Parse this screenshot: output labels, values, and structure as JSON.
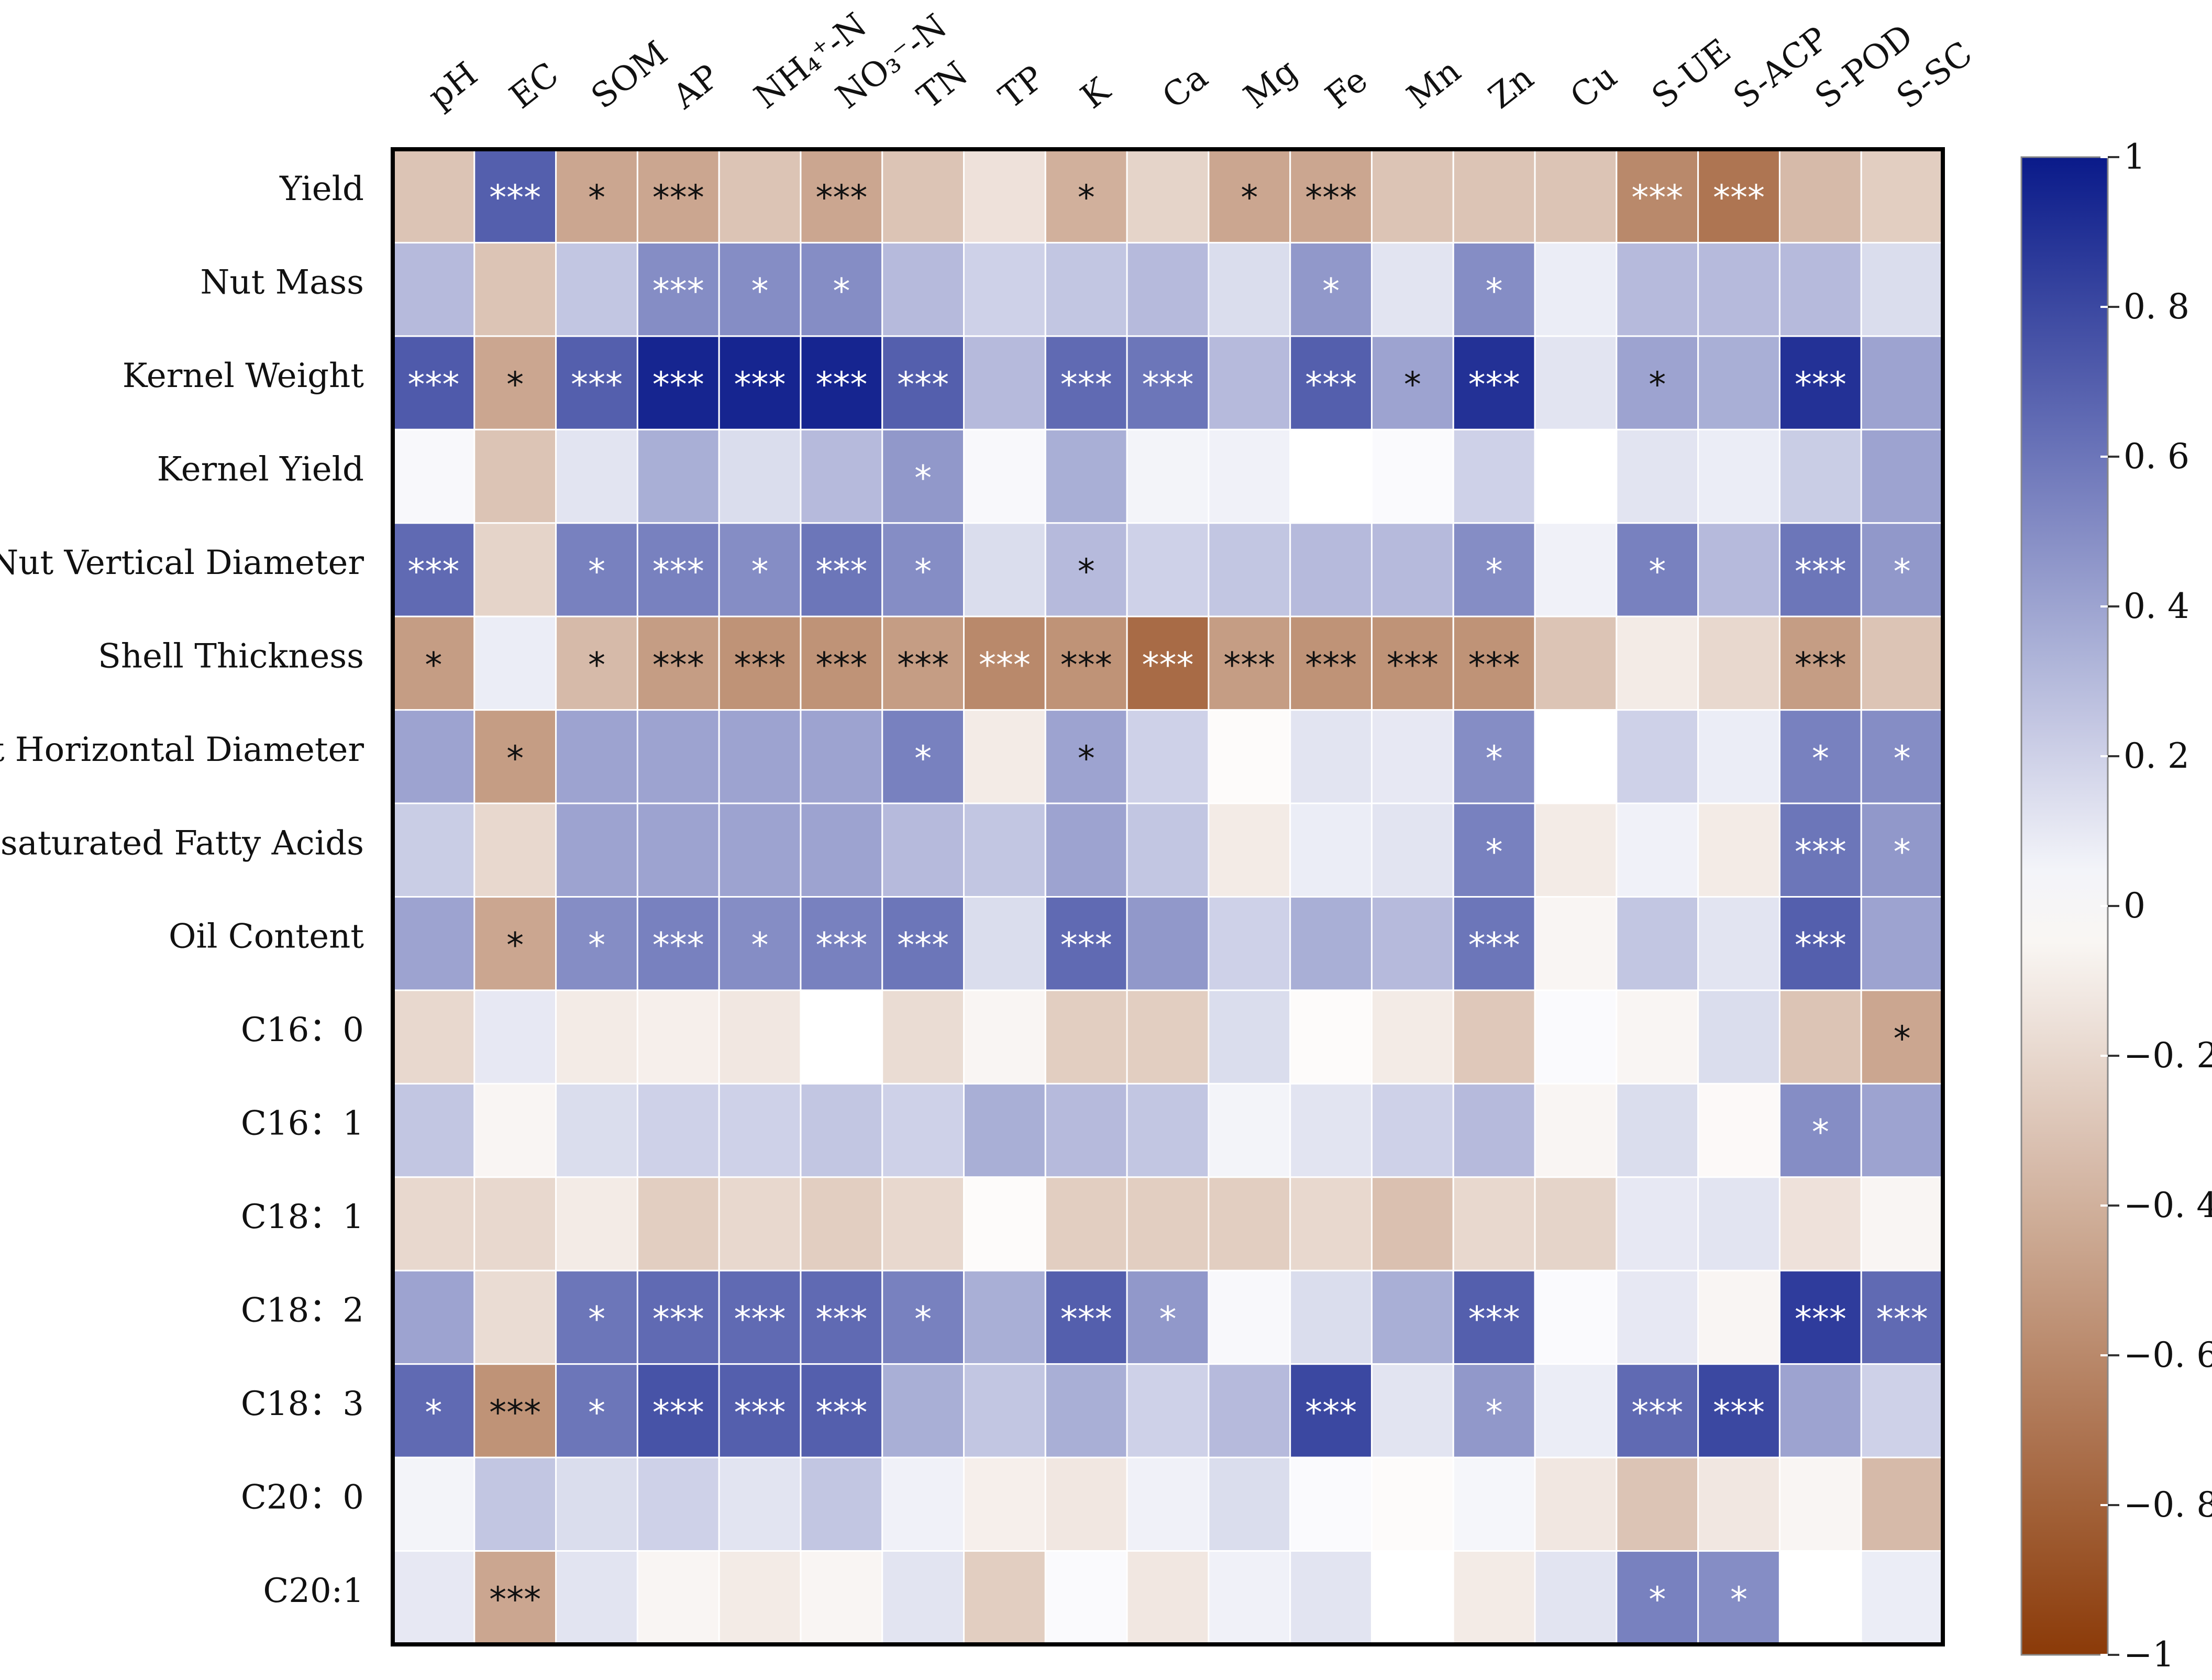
{
  "chart_data": {
    "type": "heatmap",
    "title": "",
    "xlabel": "",
    "ylabel": "",
    "x_labels": [
      "pH",
      "EC",
      "SOM",
      "AP",
      "NH₄⁺-N",
      "NO₃⁻-N",
      "TN",
      "TP",
      "K",
      "Ca",
      "Mg",
      "Fe",
      "Mn",
      "Zn",
      "Cu",
      "S-UE",
      "S-ACP",
      "S-POD",
      "S-SC"
    ],
    "y_labels": [
      "Yield",
      "Nut Mass",
      "Kernel Weight",
      "Kernel Yield",
      "Nut Vertical Diameter",
      "Shell Thickness",
      "Nut Horizontal Diameter",
      "Unsaturated Fatty Acids",
      "Oil Content",
      "C16：0",
      "C16：1",
      "C18：1",
      "C18：2",
      "C18：3",
      "C20：0",
      "C20:1"
    ],
    "values": [
      [
        -0.3,
        0.7,
        -0.45,
        -0.45,
        -0.3,
        -0.45,
        -0.3,
        -0.15,
        -0.4,
        -0.22,
        -0.45,
        -0.45,
        -0.3,
        -0.3,
        -0.3,
        -0.6,
        -0.7,
        -0.35,
        -0.25
      ],
      [
        0.3,
        -0.3,
        0.25,
        0.5,
        0.5,
        0.5,
        0.3,
        0.2,
        0.25,
        0.3,
        0.15,
        0.45,
        0.12,
        0.5,
        0.08,
        0.3,
        0.3,
        0.3,
        0.15
      ],
      [
        0.72,
        -0.45,
        0.7,
        0.95,
        0.95,
        0.95,
        0.7,
        0.3,
        0.65,
        0.6,
        0.3,
        0.7,
        0.4,
        0.9,
        0.12,
        0.4,
        0.35,
        0.9,
        0.4
      ],
      [
        0.03,
        -0.3,
        0.12,
        0.35,
        0.15,
        0.3,
        0.45,
        0.03,
        0.35,
        0.05,
        0.06,
        0.0,
        0.02,
        0.2,
        0.0,
        0.12,
        0.08,
        0.22,
        0.4
      ],
      [
        0.65,
        -0.22,
        0.55,
        0.55,
        0.5,
        0.6,
        0.5,
        0.15,
        0.3,
        0.2,
        0.25,
        0.3,
        0.3,
        0.5,
        0.06,
        0.55,
        0.3,
        0.6,
        0.45
      ],
      [
        -0.5,
        0.08,
        -0.35,
        -0.5,
        -0.55,
        -0.55,
        -0.5,
        -0.6,
        -0.55,
        -0.75,
        -0.5,
        -0.55,
        -0.55,
        -0.55,
        -0.3,
        -0.1,
        -0.2,
        -0.5,
        -0.3
      ],
      [
        0.4,
        -0.5,
        0.4,
        0.4,
        0.4,
        0.4,
        0.55,
        -0.1,
        0.4,
        0.2,
        -0.02,
        0.12,
        0.1,
        0.5,
        0.0,
        0.2,
        0.08,
        0.55,
        0.5
      ],
      [
        0.22,
        -0.2,
        0.4,
        0.4,
        0.4,
        0.4,
        0.3,
        0.25,
        0.4,
        0.25,
        -0.1,
        0.08,
        0.12,
        0.55,
        -0.1,
        0.06,
        -0.1,
        0.6,
        0.45
      ],
      [
        0.4,
        -0.45,
        0.5,
        0.55,
        0.5,
        0.55,
        0.6,
        0.15,
        0.65,
        0.45,
        0.2,
        0.35,
        0.3,
        0.6,
        -0.05,
        0.25,
        0.12,
        0.7,
        0.4
      ],
      [
        -0.2,
        0.1,
        -0.1,
        -0.08,
        -0.12,
        0.0,
        -0.18,
        -0.05,
        -0.25,
        -0.25,
        0.15,
        -0.02,
        -0.1,
        -0.28,
        0.02,
        -0.05,
        0.15,
        -0.3,
        -0.45
      ],
      [
        0.25,
        -0.05,
        0.15,
        0.2,
        0.2,
        0.25,
        0.2,
        0.35,
        0.3,
        0.25,
        0.05,
        0.12,
        0.2,
        0.3,
        -0.05,
        0.15,
        -0.03,
        0.5,
        0.4
      ],
      [
        -0.2,
        -0.2,
        -0.1,
        -0.25,
        -0.2,
        -0.25,
        -0.2,
        -0.02,
        -0.25,
        -0.25,
        -0.25,
        -0.2,
        -0.32,
        -0.2,
        -0.22,
        0.1,
        0.12,
        -0.15,
        -0.05
      ],
      [
        0.4,
        -0.18,
        0.6,
        0.65,
        0.65,
        0.65,
        0.55,
        0.35,
        0.7,
        0.45,
        0.03,
        0.15,
        0.35,
        0.7,
        0.02,
        0.1,
        -0.05,
        0.85,
        0.65
      ],
      [
        0.65,
        -0.55,
        0.6,
        0.75,
        0.7,
        0.7,
        0.35,
        0.25,
        0.35,
        0.2,
        0.3,
        0.8,
        0.12,
        0.45,
        0.08,
        0.65,
        0.8,
        0.4,
        0.2
      ],
      [
        0.05,
        0.25,
        0.15,
        0.2,
        0.12,
        0.25,
        0.06,
        -0.08,
        -0.12,
        0.06,
        0.15,
        0.02,
        -0.02,
        0.04,
        -0.12,
        -0.3,
        -0.12,
        -0.05,
        -0.35
      ],
      [
        0.1,
        -0.45,
        0.12,
        -0.05,
        -0.1,
        -0.05,
        0.12,
        -0.25,
        0.02,
        -0.12,
        0.06,
        0.12,
        0.0,
        -0.1,
        0.12,
        0.55,
        0.5,
        0.0,
        0.08
      ]
    ],
    "significance": [
      [
        "",
        "***",
        "*",
        "***",
        "",
        "***",
        "",
        "",
        "*",
        "",
        "*",
        "***",
        "",
        "",
        "",
        "***",
        "***",
        "",
        ""
      ],
      [
        "",
        "",
        "",
        "***",
        "*",
        "*",
        "",
        "",
        "",
        "",
        "",
        "*",
        "",
        "*",
        "",
        "",
        "",
        "",
        ""
      ],
      [
        "***",
        "*",
        "***",
        "***",
        "***",
        "***",
        "***",
        "",
        "***",
        "***",
        "",
        "***",
        "*",
        "***",
        "",
        "*",
        "",
        "***",
        ""
      ],
      [
        "",
        "",
        "",
        "",
        "",
        "",
        "*",
        "",
        "",
        "",
        "",
        "",
        "",
        "",
        "",
        "",
        "",
        "",
        ""
      ],
      [
        "***",
        "",
        "*",
        "***",
        "*",
        "***",
        "*",
        "",
        "*",
        "",
        "",
        "",
        "",
        "*",
        "",
        "*",
        "",
        "***",
        "*"
      ],
      [
        "*",
        "",
        "*",
        "***",
        "***",
        "***",
        "***",
        "***",
        "***",
        "***",
        "***",
        "***",
        "***",
        "***",
        "",
        "",
        "",
        "***",
        ""
      ],
      [
        "",
        "*",
        "",
        "",
        "",
        "",
        "*",
        "",
        "*",
        "",
        "",
        "",
        "",
        "*",
        "",
        "",
        "",
        "*",
        "*"
      ],
      [
        "",
        "",
        "",
        "",
        "",
        "",
        "",
        "",
        "",
        "",
        "",
        "",
        "",
        "*",
        "",
        "",
        "",
        "***",
        "*"
      ],
      [
        "",
        "*",
        "*",
        "***",
        "*",
        "***",
        "***",
        "",
        "***",
        "",
        "",
        "",
        "",
        "***",
        "",
        "",
        "",
        "***",
        ""
      ],
      [
        "",
        "",
        "",
        "",
        "",
        "",
        "",
        "",
        "",
        "",
        "",
        "",
        "",
        "",
        "",
        "",
        "",
        "",
        "*"
      ],
      [
        "",
        "",
        "",
        "",
        "",
        "",
        "",
        "",
        "",
        "",
        "",
        "",
        "",
        "",
        "",
        "",
        "",
        "*",
        ""
      ],
      [
        "",
        "",
        "",
        "",
        "",
        "",
        "",
        "",
        "",
        "",
        "",
        "",
        "",
        "",
        "",
        "",
        "",
        "",
        ""
      ],
      [
        "",
        "",
        "*",
        "***",
        "***",
        "***",
        "*",
        "",
        "***",
        "*",
        "",
        "",
        "",
        "***",
        "",
        "",
        "",
        "***",
        "***"
      ],
      [
        "*",
        "***",
        "*",
        "***",
        "***",
        "***",
        "",
        "",
        "",
        "",
        "",
        "***",
        "",
        "*",
        "",
        "***",
        "***",
        "",
        ""
      ],
      [
        "",
        "",
        "",
        "",
        "",
        "",
        "",
        "",
        "",
        "",
        "",
        "",
        "",
        "",
        "",
        "",
        "",
        "",
        ""
      ],
      [
        "",
        "***",
        "",
        "",
        "",
        "",
        "",
        "",
        "",
        "",
        "",
        "",
        "",
        "",
        "",
        "*",
        "*",
        "",
        ""
      ]
    ],
    "colorbar": {
      "min": -1,
      "max": 1,
      "ticks": [
        1,
        0.8,
        0.6,
        0.4,
        0.2,
        0,
        -0.2,
        -0.4,
        -0.6,
        -0.8,
        -1
      ],
      "tick_labels": [
        "1",
        "0. 8",
        "0. 6",
        "0. 4",
        "0. 2",
        "0",
        "−0. 2",
        "−0. 4",
        "−0. 6",
        "−0. 8",
        "−1"
      ],
      "positive_color": "#0a1a8a",
      "zero_color": "#ffffff",
      "negative_color": "#8b3a08"
    },
    "legend": "right",
    "grid": true
  }
}
